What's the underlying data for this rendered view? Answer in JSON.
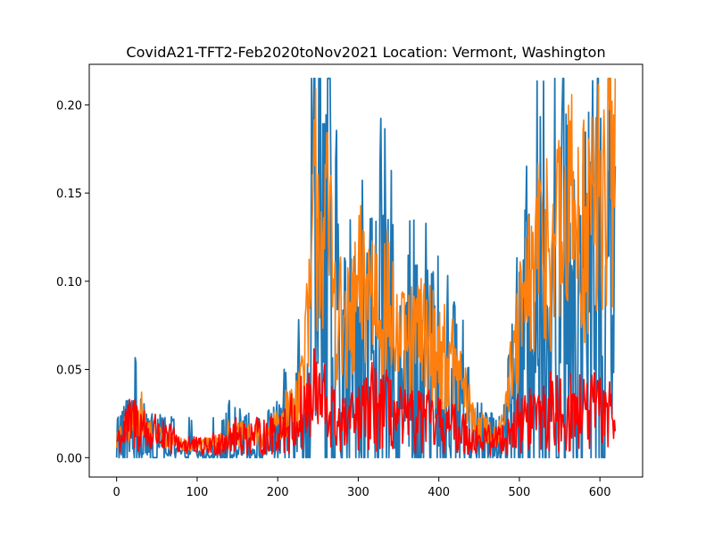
{
  "chart_data": {
    "type": "line",
    "title": "CovidA21-TFT2-Feb2020toNov2021 Location: Vermont, Washington",
    "xlabel": "",
    "ylabel": "",
    "xlim": [
      -34,
      653
    ],
    "ylim": [
      -0.011,
      0.223
    ],
    "x_ticks": [
      0,
      100,
      200,
      300,
      400,
      500,
      600
    ],
    "x_tick_labels": [
      "0",
      "100",
      "200",
      "300",
      "400",
      "500",
      "600"
    ],
    "y_ticks": [
      0.0,
      0.05,
      0.1,
      0.15,
      0.2
    ],
    "y_tick_labels": [
      "0.00",
      "0.05",
      "0.10",
      "0.15",
      "0.20"
    ],
    "grid": false,
    "legend": "none",
    "series_colors": [
      "#1f77b4",
      "#ff7f0e",
      "#ff0000"
    ],
    "series_keypoints": [
      {
        "x": [
          0,
          10,
          20,
          30,
          40,
          50,
          60,
          70,
          80,
          90,
          100,
          110,
          120,
          130,
          140,
          150,
          160,
          170,
          180,
          190,
          200,
          210,
          220,
          230,
          240,
          247,
          252,
          258,
          265,
          272,
          280,
          290,
          300,
          310,
          320,
          330,
          340,
          350,
          360,
          370,
          380,
          390,
          400,
          410,
          420,
          430,
          440,
          450,
          460,
          470,
          480,
          490,
          500,
          510,
          520,
          530,
          540,
          550,
          560,
          570,
          580,
          590,
          600,
          610,
          619
        ],
        "y": [
          0.01,
          0.02,
          0.03,
          0.035,
          0.01,
          0.02,
          0.01,
          0.01,
          0.005,
          0.01,
          0.005,
          0.005,
          0.01,
          0.01,
          0.02,
          0.015,
          0.015,
          0.01,
          0.01,
          0.015,
          0.02,
          0.025,
          0.035,
          0.055,
          0.1,
          0.19,
          0.165,
          0.13,
          0.15,
          0.1,
          0.065,
          0.075,
          0.09,
          0.095,
          0.11,
          0.1,
          0.09,
          0.07,
          0.07,
          0.07,
          0.075,
          0.07,
          0.065,
          0.06,
          0.05,
          0.04,
          0.025,
          0.02,
          0.015,
          0.01,
          0.02,
          0.045,
          0.07,
          0.09,
          0.11,
          0.12,
          0.14,
          0.12,
          0.13,
          0.16,
          0.14,
          0.16,
          0.15,
          0.17,
          0.19
        ]
      },
      {
        "x": [
          0,
          10,
          20,
          30,
          40,
          50,
          60,
          70,
          80,
          90,
          100,
          110,
          120,
          130,
          140,
          150,
          160,
          170,
          180,
          190,
          200,
          210,
          220,
          230,
          240,
          247,
          252,
          258,
          265,
          272,
          280,
          290,
          300,
          310,
          320,
          330,
          340,
          350,
          360,
          370,
          380,
          390,
          400,
          410,
          420,
          430,
          440,
          450,
          460,
          470,
          480,
          490,
          500,
          510,
          520,
          530,
          540,
          550,
          560,
          570,
          580,
          590,
          600,
          610,
          619
        ],
        "y": [
          0.01,
          0.015,
          0.02,
          0.025,
          0.015,
          0.015,
          0.01,
          0.01,
          0.008,
          0.008,
          0.007,
          0.007,
          0.008,
          0.01,
          0.015,
          0.013,
          0.013,
          0.012,
          0.012,
          0.013,
          0.02,
          0.025,
          0.03,
          0.045,
          0.08,
          0.15,
          0.14,
          0.13,
          0.12,
          0.09,
          0.07,
          0.07,
          0.09,
          0.1,
          0.095,
          0.09,
          0.08,
          0.065,
          0.06,
          0.065,
          0.07,
          0.065,
          0.06,
          0.055,
          0.05,
          0.04,
          0.025,
          0.018,
          0.015,
          0.012,
          0.025,
          0.045,
          0.07,
          0.09,
          0.11,
          0.12,
          0.13,
          0.12,
          0.13,
          0.15,
          0.13,
          0.14,
          0.14,
          0.16,
          0.17
        ]
      },
      {
        "x": [
          0,
          10,
          20,
          30,
          40,
          50,
          60,
          70,
          80,
          90,
          100,
          110,
          120,
          130,
          140,
          150,
          160,
          170,
          180,
          190,
          200,
          210,
          220,
          230,
          240,
          247,
          252,
          258,
          265,
          272,
          280,
          290,
          300,
          310,
          320,
          330,
          340,
          350,
          360,
          370,
          380,
          390,
          400,
          410,
          420,
          430,
          440,
          450,
          460,
          470,
          480,
          490,
          500,
          510,
          520,
          530,
          540,
          550,
          560,
          570,
          580,
          590,
          600,
          610,
          619
        ],
        "y": [
          0.01,
          0.015,
          0.02,
          0.02,
          0.012,
          0.015,
          0.01,
          0.01,
          0.008,
          0.008,
          0.006,
          0.006,
          0.008,
          0.01,
          0.012,
          0.012,
          0.012,
          0.012,
          0.012,
          0.012,
          0.015,
          0.018,
          0.02,
          0.025,
          0.03,
          0.035,
          0.03,
          0.03,
          0.025,
          0.02,
          0.018,
          0.02,
          0.022,
          0.025,
          0.03,
          0.028,
          0.025,
          0.022,
          0.02,
          0.02,
          0.022,
          0.02,
          0.018,
          0.018,
          0.016,
          0.015,
          0.012,
          0.01,
          0.01,
          0.01,
          0.012,
          0.015,
          0.02,
          0.022,
          0.024,
          0.025,
          0.026,
          0.025,
          0.025,
          0.026,
          0.025,
          0.026,
          0.025,
          0.028,
          0.03
        ]
      }
    ]
  }
}
